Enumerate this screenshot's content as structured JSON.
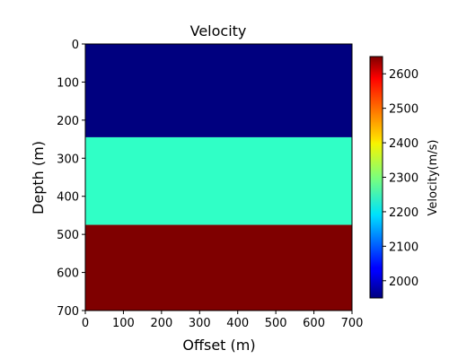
{
  "chart_data": {
    "type": "heatmap",
    "title": "Velocity",
    "xlabel": "Offset (m)",
    "ylabel": "Depth (m)",
    "xlim": [
      0,
      700
    ],
    "ylim": [
      700,
      0
    ],
    "xticks": [
      0,
      100,
      200,
      300,
      400,
      500,
      600,
      700
    ],
    "yticks": [
      0,
      100,
      200,
      300,
      400,
      500,
      600,
      700
    ],
    "layers": [
      {
        "depth_top": 0,
        "depth_bottom": 245,
        "velocity": 1950,
        "color": "#00007f"
      },
      {
        "depth_top": 245,
        "depth_bottom": 475,
        "velocity": 2200,
        "color": "#30ffc6"
      },
      {
        "depth_top": 475,
        "depth_bottom": 700,
        "velocity": 2650,
        "color": "#7f0000"
      }
    ],
    "colorbar": {
      "label": "Velocity(m/s)",
      "min": 1950,
      "max": 2650,
      "colormap": "jet",
      "ticks": [
        2000,
        2100,
        2200,
        2300,
        2400,
        2500,
        2600
      ]
    },
    "grid": false
  }
}
